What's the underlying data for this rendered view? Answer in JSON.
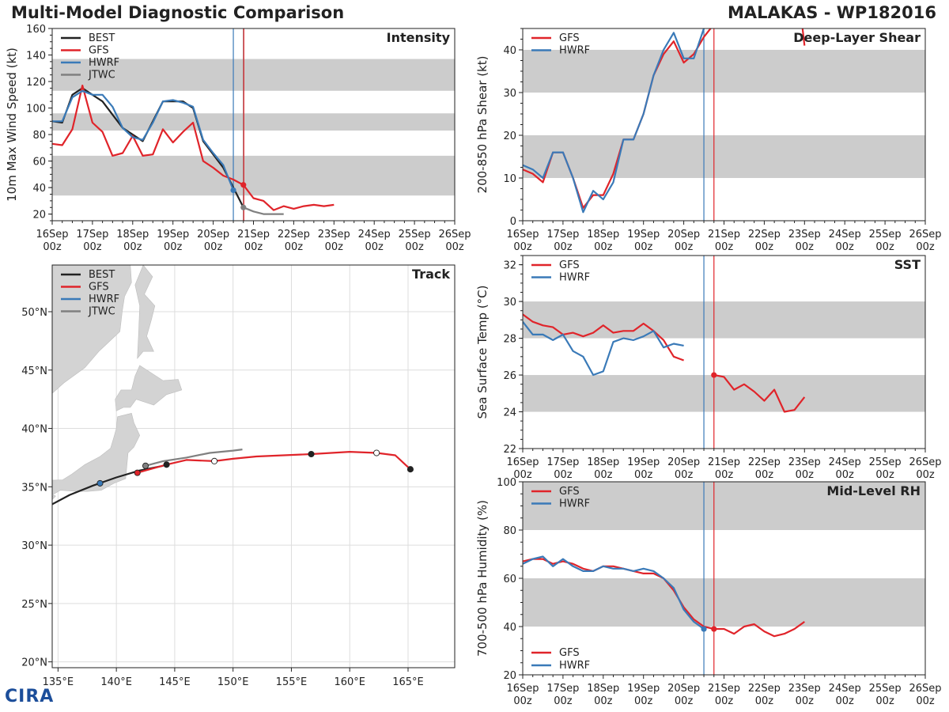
{
  "title_left": "Multi-Model Diagnostic Comparison",
  "title_right": "MALAKAS - WP182016",
  "colors": {
    "BEST": "#222222",
    "GFS": "#e0242a",
    "HWRF": "#3a7ab8",
    "JTWC": "#808080",
    "band": "#cccccc"
  },
  "time_ticks": [
    "16Sep",
    "17Sep",
    "18Sep",
    "19Sep",
    "20Sep",
    "21Sep",
    "22Sep",
    "23Sep",
    "24Sep",
    "25Sep",
    "26Sep"
  ],
  "time_ticks_sub": "00z",
  "markers": {
    "HWRF_time": 4.5,
    "GFS_time": 4.75
  },
  "chart_data": [
    {
      "id": "intensity",
      "type": "line",
      "title": "Intensity",
      "ylabel": "10m Max Wind Speed (kt)",
      "xlim": [
        0,
        10
      ],
      "ylim": [
        15,
        160
      ],
      "yticks": [
        20,
        40,
        60,
        80,
        100,
        120,
        140,
        160
      ],
      "bands": [
        [
          34,
          64
        ],
        [
          83,
          96
        ],
        [
          113,
          137
        ]
      ],
      "legend": [
        "BEST",
        "GFS",
        "HWRF",
        "JTWC"
      ],
      "vlines": [
        {
          "x": 4.5,
          "color": "HWRF"
        },
        {
          "x": 4.75,
          "color": "JTWC"
        },
        {
          "x": 4.76,
          "color": "GFS"
        }
      ],
      "series": [
        {
          "name": "BEST",
          "x": [
            0,
            0.25,
            0.5,
            0.75,
            1,
            1.25,
            1.5,
            1.75,
            2,
            2.25,
            2.5,
            2.75,
            3,
            3.25,
            3.5,
            3.75,
            4,
            4.25,
            4.5,
            4.75
          ],
          "y": [
            90,
            89,
            110,
            115,
            110,
            105,
            95,
            85,
            80,
            75,
            90,
            105,
            105,
            105,
            100,
            75,
            65,
            55,
            40,
            25
          ]
        },
        {
          "name": "GFS",
          "x": [
            0,
            0.25,
            0.5,
            0.75,
            1,
            1.25,
            1.5,
            1.75,
            2,
            2.25,
            2.5,
            2.75,
            3,
            3.25,
            3.5,
            3.75,
            4,
            4.25,
            4.5,
            4.75,
            5,
            5.25,
            5.5,
            5.75,
            6,
            6.25,
            6.5,
            6.75,
            7
          ],
          "y": [
            73,
            72,
            84,
            117,
            89,
            82,
            64,
            66,
            79,
            64,
            65,
            84,
            74,
            82,
            89,
            60,
            55,
            49,
            46,
            42,
            32,
            30,
            23,
            26,
            24,
            26,
            27,
            26,
            27
          ],
          "dot": [
            4.75,
            42
          ]
        },
        {
          "name": "HWRF",
          "x": [
            0,
            0.25,
            0.5,
            0.75,
            1,
            1.25,
            1.5,
            1.75,
            2,
            2.25,
            2.5,
            2.75,
            3,
            3.25,
            3.5,
            3.75,
            4,
            4.25,
            4.5
          ],
          "y": [
            90,
            90,
            108,
            113,
            110,
            110,
            101,
            85,
            78,
            76,
            89,
            105,
            106,
            104,
            101,
            76,
            66,
            57,
            38
          ],
          "dot": [
            4.5,
            38
          ]
        },
        {
          "name": "JTWC",
          "x": [
            4.75,
            5,
            5.25,
            5.5,
            5.75
          ],
          "y": [
            25,
            22,
            20,
            20,
            20
          ],
          "dot": [
            4.75,
            25
          ]
        }
      ]
    },
    {
      "id": "shear",
      "type": "line",
      "title": "Deep-Layer Shear",
      "ylabel": "200-850 hPa Shear (kt)",
      "xlim": [
        0,
        10
      ],
      "ylim": [
        0,
        45
      ],
      "yticks": [
        0,
        10,
        20,
        30,
        40
      ],
      "bands": [
        [
          10,
          20
        ],
        [
          30,
          40
        ]
      ],
      "legend": [
        "GFS",
        "HWRF"
      ],
      "vlines": [
        {
          "x": 4.5,
          "color": "HWRF"
        },
        {
          "x": 4.75,
          "color": "GFS"
        }
      ],
      "series": [
        {
          "name": "GFS",
          "x": [
            0,
            0.25,
            0.5,
            0.75,
            1,
            1.25,
            1.5,
            1.75,
            2,
            2.25,
            2.5,
            2.75,
            3,
            3.25,
            3.5,
            3.75,
            4,
            4.25,
            4.5,
            4.75
          ],
          "y": [
            12,
            11,
            9,
            16,
            16,
            10,
            3,
            6,
            6,
            11,
            19,
            19,
            25,
            34,
            39,
            42,
            37,
            39,
            43,
            46
          ]
        },
        {
          "name": "GFS",
          "x": [
            6.95,
            7
          ],
          "y": [
            45,
            41
          ]
        },
        {
          "name": "HWRF",
          "x": [
            0,
            0.25,
            0.5,
            0.75,
            1,
            1.25,
            1.5,
            1.75,
            2,
            2.25,
            2.5,
            2.75,
            3,
            3.25,
            3.5,
            3.75,
            4,
            4.25,
            4.5
          ],
          "y": [
            13,
            12,
            10,
            16,
            16,
            10,
            2,
            7,
            5,
            9,
            19,
            19,
            25,
            34,
            40,
            44,
            38,
            38,
            45
          ]
        }
      ]
    },
    {
      "id": "sst",
      "type": "line",
      "title": "SST",
      "ylabel": "Sea Surface Temp (°C)",
      "xlim": [
        0,
        10
      ],
      "ylim": [
        22,
        32.5
      ],
      "yticks": [
        22,
        24,
        26,
        28,
        30,
        32
      ],
      "bands": [
        [
          24,
          26
        ],
        [
          28,
          30
        ]
      ],
      "legend": [
        "GFS",
        "HWRF"
      ],
      "vlines": [
        {
          "x": 4.5,
          "color": "HWRF"
        },
        {
          "x": 4.75,
          "color": "GFS"
        }
      ],
      "series": [
        {
          "name": "GFS",
          "x": [
            0,
            0.25,
            0.5,
            0.75,
            1,
            1.25,
            1.5,
            1.75,
            2,
            2.25,
            2.5,
            2.75,
            3,
            3.25,
            3.5,
            3.75,
            4
          ],
          "y": [
            29.3,
            28.9,
            28.7,
            28.6,
            28.2,
            28.3,
            28.1,
            28.3,
            28.7,
            28.3,
            28.4,
            28.4,
            28.8,
            28.4,
            27.9,
            27.0,
            26.8
          ]
        },
        {
          "name": "GFS",
          "x": [
            4.75,
            5,
            5.25,
            5.5,
            5.75,
            6,
            6.25,
            6.5,
            6.75,
            7
          ],
          "y": [
            26.0,
            25.9,
            25.2,
            25.5,
            25.1,
            24.6,
            25.2,
            24.0,
            24.1,
            24.8
          ],
          "dot": [
            4.75,
            26.0
          ]
        },
        {
          "name": "HWRF",
          "x": [
            0,
            0.25,
            0.5,
            0.75,
            1,
            1.25,
            1.5,
            1.75,
            2,
            2.25,
            2.5,
            2.75,
            3,
            3.25,
            3.5,
            3.75,
            4
          ],
          "y": [
            28.9,
            28.2,
            28.2,
            27.9,
            28.2,
            27.3,
            27.0,
            26.0,
            26.2,
            27.8,
            28.0,
            27.9,
            28.1,
            28.4,
            27.5,
            27.7,
            27.6
          ]
        }
      ]
    },
    {
      "id": "rh",
      "type": "line",
      "title": "Mid-Level RH",
      "ylabel": "700-500 hPa Humidity (%)",
      "xlim": [
        0,
        10
      ],
      "ylim": [
        20,
        100
      ],
      "yticks": [
        20,
        40,
        60,
        80,
        100
      ],
      "bands": [
        [
          40,
          60
        ],
        [
          80,
          100
        ]
      ],
      "legend": [
        "GFS",
        "HWRF"
      ],
      "vlines": [
        {
          "x": 4.5,
          "color": "HWRF"
        },
        {
          "x": 4.75,
          "color": "GFS"
        }
      ],
      "series": [
        {
          "name": "GFS",
          "x": [
            0,
            0.25,
            0.5,
            0.75,
            1,
            1.25,
            1.5,
            1.75,
            2,
            2.25,
            2.5,
            2.75,
            3,
            3.25,
            3.5,
            3.75,
            4,
            4.25,
            4.5,
            4.75,
            5,
            5.25,
            5.5,
            5.75,
            6,
            6.25,
            6.5,
            6.75,
            7
          ],
          "y": [
            67,
            68,
            68,
            66,
            67,
            66,
            64,
            63,
            65,
            65,
            64,
            63,
            62,
            62,
            60,
            55,
            48,
            43,
            40,
            39,
            39,
            37,
            40,
            41,
            38,
            36,
            37,
            39,
            42
          ],
          "dot": [
            4.75,
            39
          ]
        },
        {
          "name": "HWRF",
          "x": [
            0,
            0.25,
            0.5,
            0.75,
            1,
            1.25,
            1.5,
            1.75,
            2,
            2.25,
            2.5,
            2.75,
            3,
            3.25,
            3.5,
            3.75,
            4,
            4.25,
            4.5
          ],
          "y": [
            66,
            68,
            69,
            65,
            68,
            65,
            63,
            63,
            65,
            64,
            64,
            63,
            64,
            63,
            60,
            56,
            47,
            42,
            39
          ],
          "dot": [
            4.5,
            39
          ]
        }
      ]
    },
    {
      "id": "track",
      "type": "scatter",
      "title": "Track",
      "xlim": [
        134.5,
        169
      ],
      "ylim": [
        19.5,
        54
      ],
      "xticks": [
        135,
        140,
        145,
        150,
        155,
        160,
        165
      ],
      "xtick_labels": [
        "135°E",
        "140°E",
        "145°E",
        "150°E",
        "155°E",
        "160°E",
        "165°E"
      ],
      "yticks": [
        20,
        25,
        30,
        35,
        40,
        45,
        50
      ],
      "ytick_labels": [
        "20°N",
        "25°N",
        "30°N",
        "35°N",
        "40°N",
        "45°N",
        "50°N"
      ],
      "legend": [
        "BEST",
        "GFS",
        "HWRF",
        "JTWC"
      ],
      "series": [
        {
          "name": "BEST",
          "lon": [
            134.5,
            136,
            138,
            140,
            142,
            144
          ],
          "lat": [
            33.5,
            34.3,
            35.1,
            35.8,
            36.4,
            36.8
          ]
        },
        {
          "name": "GFS",
          "lon": [
            141.8,
            142.5,
            144.3,
            146,
            148.4,
            150,
            152,
            156.7,
            160,
            162.3,
            163.9,
            165.2
          ],
          "lat": [
            36.2,
            36.4,
            36.9,
            37.3,
            37.2,
            37.4,
            37.6,
            37.8,
            38,
            37.9,
            37.7,
            36.5
          ]
        },
        {
          "name": "HWRF",
          "lon": [
            138.6
          ],
          "lat": [
            35.3
          ]
        },
        {
          "name": "JTWC",
          "lon": [
            142.5,
            144,
            146,
            148,
            150,
            150.8
          ],
          "lat": [
            36.8,
            37.2,
            37.5,
            37.9,
            38.1,
            38.2
          ]
        }
      ],
      "points": [
        {
          "lon": 141.8,
          "lat": 36.2,
          "fill": "GFS"
        },
        {
          "lon": 144.3,
          "lat": 36.9,
          "fill": "BEST"
        },
        {
          "lon": 148.4,
          "lat": 37.2,
          "fill": "white"
        },
        {
          "lon": 156.7,
          "lat": 37.8,
          "fill": "BEST"
        },
        {
          "lon": 162.3,
          "lat": 37.9,
          "fill": "white"
        },
        {
          "lon": 165.2,
          "lat": 36.5,
          "fill": "BEST"
        },
        {
          "lon": 142.5,
          "lat": 36.8,
          "fill": "JTWC"
        },
        {
          "lon": 138.6,
          "lat": 35.3,
          "fill": "HWRF"
        }
      ]
    }
  ]
}
